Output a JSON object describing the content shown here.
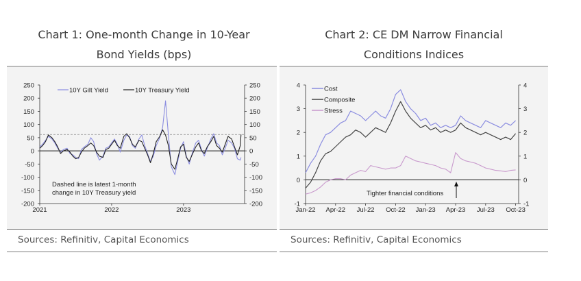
{
  "chart1": {
    "title_line1": "Chart 1: One-month Change in 10-Year",
    "title_line2": "Bond Yields (bps)",
    "sources": "Sources: Refinitiv, Capital Economics"
  },
  "chart2": {
    "title_line1": "Chart 2: CE DM Narrow Financial",
    "title_line2": "Conditions Indices",
    "sources": "Sources: Refinitiv, Capital Economics"
  },
  "colors": {
    "gilt": "#8a8ce0",
    "treasury": "#222222",
    "cost": "#8a8ce0",
    "composite": "#444444",
    "stress": "#c898cc"
  },
  "chart_data": [
    {
      "type": "line",
      "x_ticks": [
        "2021",
        "2022",
        "2023"
      ],
      "x_tick_values": [
        2021,
        2022,
        2023
      ],
      "xlim": [
        2021,
        2023.85
      ],
      "ylim": [
        -200,
        250
      ],
      "y_ticks": [
        -200,
        -150,
        -100,
        -50,
        0,
        50,
        100,
        150,
        200,
        250
      ],
      "y_right_ticks": [
        -200,
        -150,
        -100,
        -50,
        0,
        50,
        100,
        150,
        200,
        250
      ],
      "dashed_line": 62,
      "annotation": "Dashed line is latest 1-month change in 10Y Treasury yield",
      "annotation_lines": [
        "Dashed line is latest 1-month",
        "change in 10Y Treasury yield"
      ],
      "series": [
        {
          "name": "10Y Gilt Yield",
          "x": [
            2021.0,
            2021.04,
            2021.08,
            2021.12,
            2021.17,
            2021.21,
            2021.25,
            2021.29,
            2021.33,
            2021.38,
            2021.42,
            2021.46,
            2021.5,
            2021.54,
            2021.58,
            2021.62,
            2021.67,
            2021.71,
            2021.75,
            2021.79,
            2021.83,
            2021.88,
            2021.92,
            2021.96,
            2022.0,
            2022.04,
            2022.08,
            2022.12,
            2022.17,
            2022.21,
            2022.25,
            2022.29,
            2022.33,
            2022.38,
            2022.42,
            2022.46,
            2022.5,
            2022.54,
            2022.58,
            2022.62,
            2022.67,
            2022.71,
            2022.75,
            2022.79,
            2022.83,
            2022.88,
            2022.92,
            2022.96,
            2023.0,
            2023.04,
            2023.08,
            2023.12,
            2023.17,
            2023.21,
            2023.25,
            2023.29,
            2023.33,
            2023.38,
            2023.42,
            2023.46,
            2023.5,
            2023.54,
            2023.58,
            2023.62,
            2023.67,
            2023.71,
            2023.75,
            2023.79,
            2023.8
          ],
          "values": [
            15,
            25,
            40,
            55,
            45,
            30,
            10,
            -5,
            5,
            10,
            -10,
            -15,
            -25,
            -30,
            5,
            15,
            25,
            50,
            35,
            -10,
            -35,
            -20,
            10,
            15,
            30,
            45,
            25,
            -5,
            40,
            60,
            55,
            20,
            10,
            45,
            60,
            20,
            -10,
            -40,
            -20,
            20,
            50,
            90,
            190,
            60,
            -60,
            -90,
            -40,
            10,
            35,
            -20,
            -50,
            -10,
            30,
            40,
            5,
            -20,
            10,
            45,
            65,
            30,
            20,
            -15,
            10,
            40,
            30,
            10,
            -30,
            -35,
            -25
          ]
        },
        {
          "name": "10Y Treasury Yield",
          "x": [
            2021.0,
            2021.04,
            2021.08,
            2021.12,
            2021.17,
            2021.21,
            2021.25,
            2021.29,
            2021.33,
            2021.38,
            2021.42,
            2021.46,
            2021.5,
            2021.54,
            2021.58,
            2021.62,
            2021.67,
            2021.71,
            2021.75,
            2021.79,
            2021.83,
            2021.88,
            2021.92,
            2021.96,
            2022.0,
            2022.04,
            2022.08,
            2022.12,
            2022.17,
            2022.21,
            2022.25,
            2022.29,
            2022.33,
            2022.38,
            2022.42,
            2022.46,
            2022.5,
            2022.54,
            2022.58,
            2022.62,
            2022.67,
            2022.71,
            2022.75,
            2022.79,
            2022.83,
            2022.88,
            2022.92,
            2022.96,
            2023.0,
            2023.04,
            2023.08,
            2023.12,
            2023.17,
            2023.21,
            2023.25,
            2023.29,
            2023.33,
            2023.38,
            2023.42,
            2023.46,
            2023.5,
            2023.54,
            2023.58,
            2023.62,
            2023.67,
            2023.71,
            2023.75,
            2023.79,
            2023.8
          ],
          "values": [
            10,
            20,
            35,
            60,
            50,
            35,
            15,
            -10,
            0,
            5,
            -5,
            -20,
            -30,
            -25,
            -5,
            10,
            20,
            30,
            20,
            -5,
            -20,
            -25,
            5,
            10,
            25,
            40,
            20,
            10,
            55,
            65,
            50,
            25,
            15,
            40,
            35,
            10,
            -15,
            -45,
            -10,
            35,
            55,
            80,
            60,
            20,
            -50,
            -70,
            -30,
            15,
            25,
            -25,
            -40,
            -15,
            15,
            30,
            0,
            -10,
            15,
            35,
            55,
            20,
            10,
            -5,
            25,
            55,
            45,
            15,
            -15,
            20,
            62
          ]
        }
      ]
    },
    {
      "type": "line",
      "x_ticks": [
        "Jan-22",
        "Apr-22",
        "Jul-22",
        "Oct-22",
        "Jan-23",
        "Apr-23",
        "Jul-23",
        "Oct-23"
      ],
      "x_tick_values": [
        0,
        3,
        6,
        9,
        12,
        15,
        18,
        21
      ],
      "xlim": [
        0,
        21.3
      ],
      "ylim": [
        -1,
        4
      ],
      "y_ticks": [
        -1,
        0,
        1,
        2,
        3,
        4
      ],
      "y_right_ticks": [
        -1,
        0,
        1,
        2,
        3,
        4
      ],
      "annotation": "Tighter financial conditions",
      "series": [
        {
          "name": "Cost",
          "x": [
            0,
            0.5,
            1,
            1.5,
            2,
            2.5,
            3,
            3.5,
            4,
            4.5,
            5,
            5.5,
            6,
            6.5,
            7,
            7.5,
            8,
            8.5,
            9,
            9.5,
            10,
            10.5,
            11,
            11.5,
            12,
            12.5,
            13,
            13.5,
            14,
            14.5,
            15,
            15.5,
            16,
            16.5,
            17,
            17.5,
            18,
            18.5,
            19,
            19.5,
            20,
            20.5,
            21
          ],
          "values": [
            0.3,
            0.7,
            1.0,
            1.5,
            1.9,
            2.0,
            2.2,
            2.4,
            2.5,
            2.9,
            2.8,
            2.7,
            2.5,
            2.7,
            2.9,
            2.7,
            2.6,
            3.0,
            3.6,
            3.8,
            3.3,
            3.0,
            2.8,
            2.5,
            2.6,
            2.3,
            2.4,
            2.2,
            2.3,
            2.2,
            2.3,
            2.7,
            2.5,
            2.4,
            2.3,
            2.2,
            2.5,
            2.4,
            2.3,
            2.2,
            2.4,
            2.3,
            2.5
          ]
        },
        {
          "name": "Composite",
          "x": [
            0,
            0.5,
            1,
            1.5,
            2,
            2.5,
            3,
            3.5,
            4,
            4.5,
            5,
            5.5,
            6,
            6.5,
            7,
            7.5,
            8,
            8.5,
            9,
            9.5,
            10,
            10.5,
            11,
            11.5,
            12,
            12.5,
            13,
            13.5,
            14,
            14.5,
            15,
            15.5,
            16,
            16.5,
            17,
            17.5,
            18,
            18.5,
            19,
            19.5,
            20,
            20.5,
            21
          ],
          "values": [
            -0.35,
            -0.1,
            0.3,
            0.8,
            1.1,
            1.2,
            1.4,
            1.6,
            1.8,
            1.9,
            2.1,
            2.0,
            1.8,
            2.0,
            2.2,
            2.1,
            2.0,
            2.4,
            2.9,
            3.3,
            2.9,
            2.6,
            2.4,
            2.2,
            2.3,
            2.1,
            2.2,
            2.0,
            2.1,
            2.0,
            2.1,
            2.4,
            2.2,
            2.1,
            2.0,
            1.9,
            2.0,
            1.9,
            1.8,
            1.7,
            1.8,
            1.7,
            1.95
          ]
        },
        {
          "name": "Stress",
          "x": [
            0,
            0.5,
            1,
            1.5,
            2,
            2.5,
            3,
            3.5,
            4,
            4.5,
            5,
            5.5,
            6,
            6.5,
            7,
            7.5,
            8,
            8.5,
            9,
            9.5,
            10,
            10.5,
            11,
            11.5,
            12,
            12.5,
            13,
            13.5,
            14,
            14.5,
            15,
            15.5,
            16,
            16.5,
            17,
            17.5,
            18,
            18.5,
            19,
            19.5,
            20,
            20.5,
            21
          ],
          "values": [
            -0.6,
            -0.55,
            -0.45,
            -0.3,
            -0.1,
            0.0,
            0.05,
            0.05,
            0.0,
            0.2,
            0.3,
            0.4,
            0.35,
            0.6,
            0.55,
            0.5,
            0.45,
            0.5,
            0.5,
            0.6,
            1.0,
            0.9,
            0.8,
            0.75,
            0.7,
            0.65,
            0.6,
            0.5,
            0.45,
            0.3,
            1.15,
            0.9,
            0.8,
            0.75,
            0.7,
            0.6,
            0.5,
            0.45,
            0.4,
            0.38,
            0.35,
            0.4,
            0.42
          ]
        }
      ]
    }
  ]
}
